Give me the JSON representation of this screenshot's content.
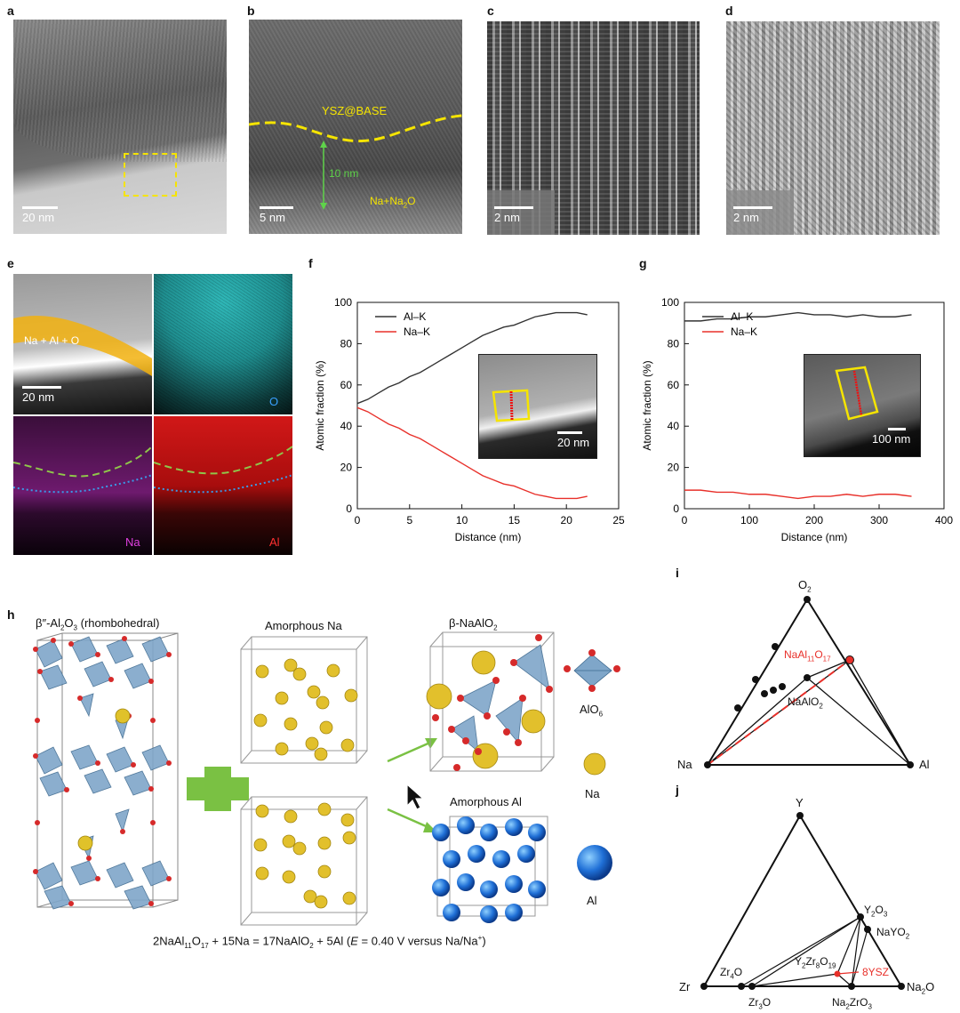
{
  "panels": {
    "a": {
      "label": "a",
      "scale": "20 nm"
    },
    "b": {
      "label": "b",
      "scale": "5 nm",
      "layer": "YSZ@BASE",
      "thickness": "10 nm",
      "bottom": "Na+Na",
      "bottom_sub": "2",
      "bottom_tail": "O"
    },
    "c": {
      "label": "c",
      "scale": "2 nm"
    },
    "d": {
      "label": "d",
      "scale": "2 nm"
    },
    "e": {
      "label": "e",
      "scale": "20 nm",
      "overlay": "Na + Al + O",
      "map_o": "O",
      "map_na": "Na",
      "map_al": "Al"
    },
    "f": {
      "label": "f",
      "inset_scale": "20 nm"
    },
    "g": {
      "label": "g",
      "inset_scale": "100 nm"
    },
    "h": {
      "label": "h",
      "beta_title_pre": "β″-Al",
      "beta_sub1": "2",
      "beta_mid": "O",
      "beta_sub2": "3",
      "beta_tail": " (rhombohedral)",
      "amorph_na": "Amorphous Na",
      "beta_naalo2_pre": "β-NaAlO",
      "beta_naalo2_sub": "2",
      "amorph_al": "Amorphous Al",
      "legend_alo6_pre": "AlO",
      "legend_alo6_sub": "6",
      "legend_na": "Na",
      "legend_al": "Al",
      "eq_1": "2NaAl",
      "eq_1s": "11",
      "eq_2": "O",
      "eq_2s": "17",
      "eq_3": " + 15Na = 17NaAlO",
      "eq_3s": "2",
      "eq_4": " + 5Al (",
      "eq_E": "E",
      "eq_5": " = 0.40 V versus Na/Na",
      "eq_5s": "+",
      "eq_6": ")"
    },
    "i": {
      "label": "i",
      "top_pre": "O",
      "top_sub": "2",
      "left": "Na",
      "right": "Al",
      "naal_pre": "NaAl",
      "naal_sub1": "11",
      "naal_mid": "O",
      "naal_sub2": "17",
      "naalo_pre": "NaAlO",
      "naalo_sub": "2"
    },
    "j": {
      "label": "j",
      "top": "Y",
      "left": "Zr",
      "right_pre": "Na",
      "right_sub": "2",
      "right_tail": "O",
      "y2o3_pre": "Y",
      "y2o3_s1": "2",
      "y2o3_mid": "O",
      "y2o3_s2": "3",
      "nayo_pre": "NaYO",
      "nayo_sub": "2",
      "zr4o_pre": "Zr",
      "zr4o_sub": "4",
      "zr4o_tail": "O",
      "zr3o_pre": "Zr",
      "zr3o_sub": "3",
      "zr3o_tail": "O",
      "y2zr_pre": "Y",
      "y2zr_s1": "2",
      "y2zr_mid": "Zr",
      "y2zr_s2": "8",
      "y2zr_mid2": "O",
      "y2zr_s3": "19",
      "ysz": "8YSZ",
      "nazr_pre": "Na",
      "nazr_s1": "2",
      "nazr_mid": "ZrO",
      "nazr_s2": "3"
    }
  },
  "chart_data": [
    {
      "type": "line",
      "panel": "f",
      "title": "",
      "xlabel": "Distance (nm)",
      "ylabel": "Atomic fraction (%)",
      "xlim": [
        0,
        25
      ],
      "ylim": [
        0,
        100
      ],
      "xticks": [
        0,
        5,
        10,
        15,
        20,
        25
      ],
      "yticks": [
        0,
        20,
        40,
        60,
        80,
        100
      ],
      "series": [
        {
          "name": "Al–K",
          "color": "#333333",
          "x": [
            0,
            1,
            2,
            3,
            4,
            5,
            6,
            7,
            8,
            9,
            10,
            11,
            12,
            13,
            14,
            15,
            16,
            17,
            18,
            19,
            20,
            21,
            22
          ],
          "values": [
            51,
            53,
            56,
            59,
            61,
            64,
            66,
            69,
            72,
            75,
            78,
            81,
            84,
            86,
            88,
            89,
            91,
            93,
            94,
            95,
            95,
            95,
            94
          ]
        },
        {
          "name": "Na–K",
          "color": "#e8302a",
          "x": [
            0,
            1,
            2,
            3,
            4,
            5,
            6,
            7,
            8,
            9,
            10,
            11,
            12,
            13,
            14,
            15,
            16,
            17,
            18,
            19,
            20,
            21,
            22
          ],
          "values": [
            49,
            47,
            44,
            41,
            39,
            36,
            34,
            31,
            28,
            25,
            22,
            19,
            16,
            14,
            12,
            11,
            9,
            7,
            6,
            5,
            5,
            5,
            6
          ]
        }
      ]
    },
    {
      "type": "line",
      "panel": "g",
      "title": "",
      "xlabel": "Distance (nm)",
      "ylabel": "Atomic fraction (%)",
      "xlim": [
        0,
        400
      ],
      "ylim": [
        0,
        100
      ],
      "xticks": [
        0,
        100,
        200,
        300,
        400
      ],
      "yticks": [
        0,
        20,
        40,
        60,
        80,
        100
      ],
      "series": [
        {
          "name": "Al–K",
          "color": "#333333",
          "x": [
            0,
            25,
            50,
            75,
            100,
            125,
            150,
            175,
            200,
            225,
            250,
            275,
            300,
            325,
            350
          ],
          "values": [
            91,
            91,
            92,
            92,
            93,
            93,
            94,
            95,
            94,
            94,
            93,
            94,
            93,
            93,
            94
          ]
        },
        {
          "name": "Na–K",
          "color": "#e8302a",
          "x": [
            0,
            25,
            50,
            75,
            100,
            125,
            150,
            175,
            200,
            225,
            250,
            275,
            300,
            325,
            350
          ],
          "values": [
            9,
            9,
            8,
            8,
            7,
            7,
            6,
            5,
            6,
            6,
            7,
            6,
            7,
            7,
            6
          ]
        }
      ]
    }
  ]
}
